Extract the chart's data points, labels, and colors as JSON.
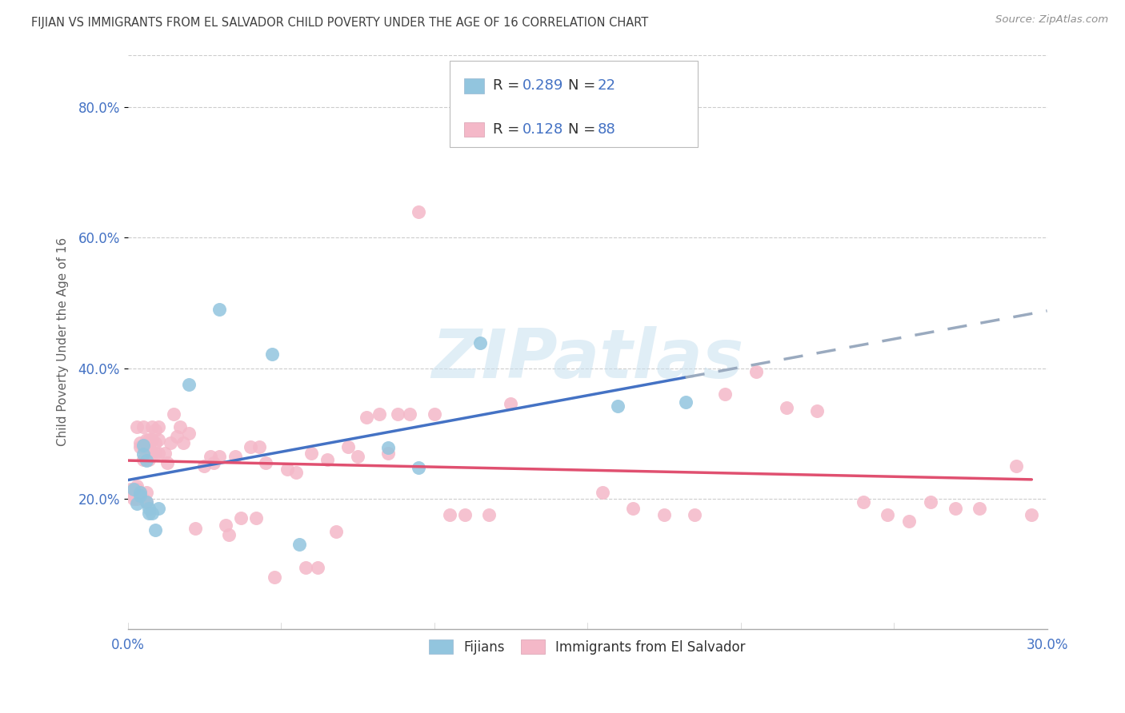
{
  "title": "FIJIAN VS IMMIGRANTS FROM EL SALVADOR CHILD POVERTY UNDER THE AGE OF 16 CORRELATION CHART",
  "source": "Source: ZipAtlas.com",
  "ylabel": "Child Poverty Under the Age of 16",
  "xlim": [
    0.0,
    0.3
  ],
  "ylim": [
    0.0,
    0.88
  ],
  "xticks": [
    0.0,
    0.05,
    0.1,
    0.15,
    0.2,
    0.25,
    0.3
  ],
  "yticks": [
    0.2,
    0.4,
    0.6,
    0.8
  ],
  "ytick_labels": [
    "20.0%",
    "40.0%",
    "60.0%",
    "80.0%"
  ],
  "blue_color": "#92c5de",
  "pink_color": "#f4b8c8",
  "axis_label_color": "#4472c4",
  "fijians_R": 0.289,
  "fijians_N": 22,
  "salvador_R": 0.128,
  "salvador_N": 88,
  "fijians_x": [
    0.002,
    0.003,
    0.004,
    0.004,
    0.005,
    0.005,
    0.006,
    0.006,
    0.007,
    0.007,
    0.008,
    0.009,
    0.01,
    0.02,
    0.03,
    0.047,
    0.056,
    0.085,
    0.095,
    0.115,
    0.16,
    0.182
  ],
  "fijians_y": [
    0.215,
    0.192,
    0.205,
    0.21,
    0.268,
    0.282,
    0.258,
    0.195,
    0.178,
    0.185,
    0.178,
    0.152,
    0.185,
    0.375,
    0.49,
    0.422,
    0.13,
    0.278,
    0.248,
    0.438,
    0.342,
    0.348
  ],
  "salvador_x": [
    0.001,
    0.002,
    0.002,
    0.003,
    0.003,
    0.003,
    0.003,
    0.004,
    0.004,
    0.004,
    0.005,
    0.005,
    0.005,
    0.005,
    0.006,
    0.006,
    0.006,
    0.006,
    0.007,
    0.007,
    0.007,
    0.008,
    0.008,
    0.008,
    0.009,
    0.009,
    0.009,
    0.01,
    0.01,
    0.01,
    0.012,
    0.013,
    0.014,
    0.015,
    0.016,
    0.017,
    0.018,
    0.02,
    0.022,
    0.025,
    0.027,
    0.028,
    0.03,
    0.032,
    0.033,
    0.035,
    0.037,
    0.04,
    0.042,
    0.043,
    0.045,
    0.048,
    0.052,
    0.055,
    0.058,
    0.06,
    0.062,
    0.065,
    0.068,
    0.072,
    0.075,
    0.078,
    0.082,
    0.085,
    0.088,
    0.092,
    0.095,
    0.1,
    0.105,
    0.11,
    0.118,
    0.125,
    0.155,
    0.165,
    0.175,
    0.185,
    0.195,
    0.205,
    0.215,
    0.225,
    0.24,
    0.248,
    0.255,
    0.262,
    0.27,
    0.278,
    0.29,
    0.295
  ],
  "salvador_y": [
    0.215,
    0.205,
    0.2,
    0.215,
    0.31,
    0.2,
    0.22,
    0.28,
    0.21,
    0.285,
    0.2,
    0.26,
    0.28,
    0.31,
    0.21,
    0.28,
    0.29,
    0.195,
    0.28,
    0.29,
    0.26,
    0.27,
    0.29,
    0.31,
    0.27,
    0.305,
    0.285,
    0.31,
    0.29,
    0.27,
    0.27,
    0.255,
    0.285,
    0.33,
    0.295,
    0.31,
    0.285,
    0.3,
    0.155,
    0.25,
    0.265,
    0.255,
    0.265,
    0.16,
    0.145,
    0.265,
    0.17,
    0.28,
    0.17,
    0.28,
    0.255,
    0.08,
    0.245,
    0.24,
    0.095,
    0.27,
    0.095,
    0.26,
    0.15,
    0.28,
    0.265,
    0.325,
    0.33,
    0.27,
    0.33,
    0.33,
    0.64,
    0.33,
    0.175,
    0.175,
    0.175,
    0.345,
    0.21,
    0.185,
    0.175,
    0.175,
    0.36,
    0.395,
    0.34,
    0.335,
    0.195,
    0.175,
    0.165,
    0.195,
    0.185,
    0.185,
    0.25,
    0.175
  ]
}
